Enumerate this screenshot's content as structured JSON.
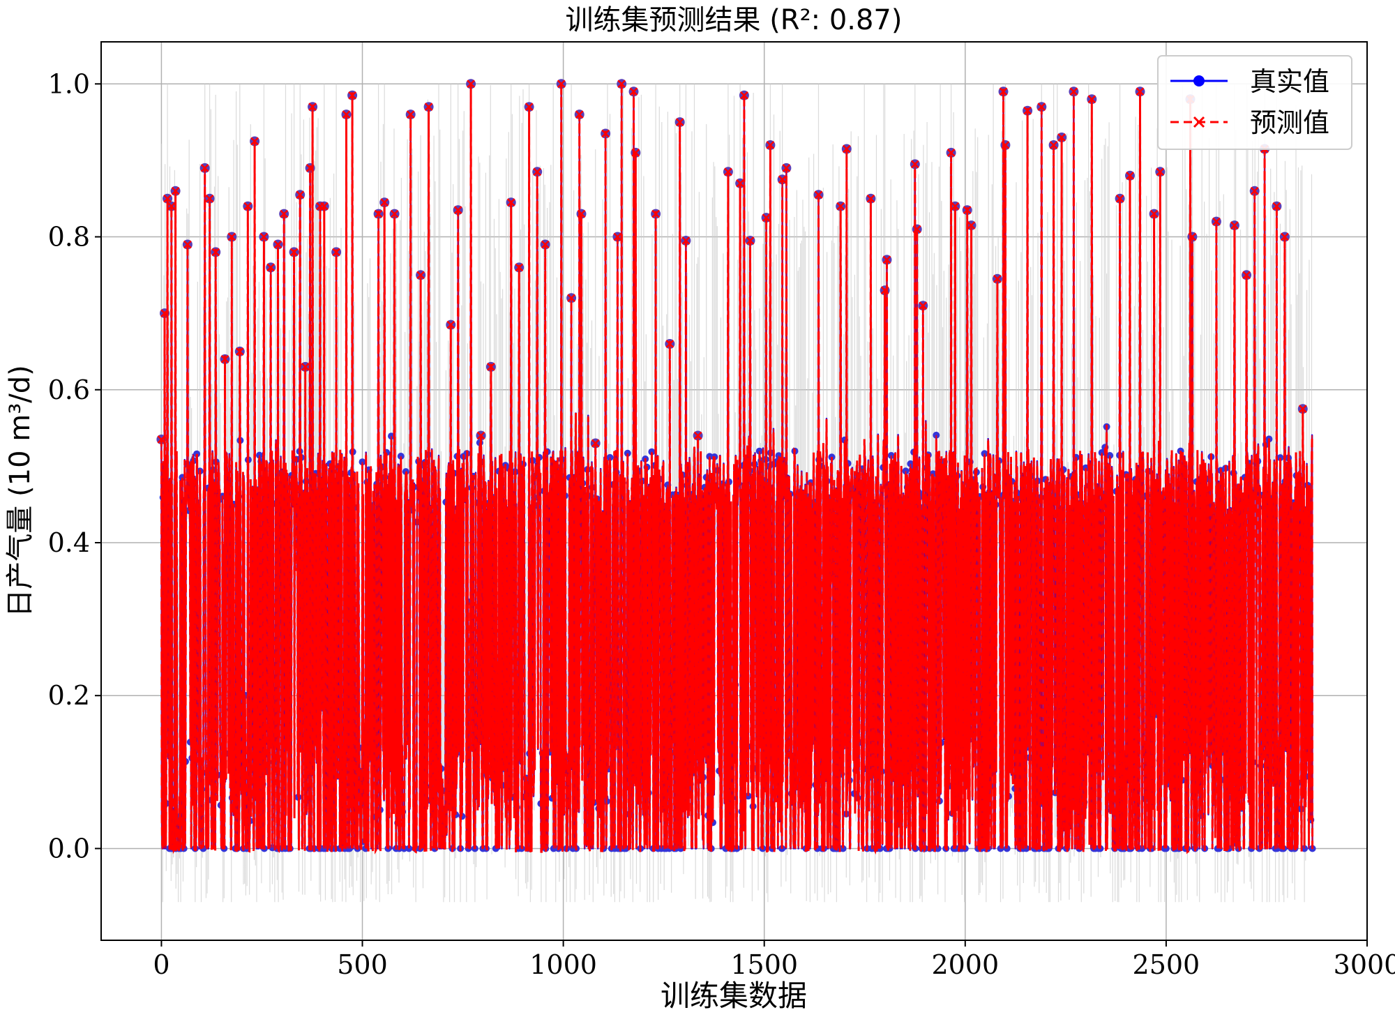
{
  "chart_data": {
    "type": "line",
    "title": "训练集预测结果 (R²: 0.87)",
    "xlabel": "训练集数据",
    "ylabel": "日产气量 (10 m³/d)",
    "xlim": [
      -150,
      3000
    ],
    "ylim": [
      -0.12,
      1.055
    ],
    "xticks": [
      0,
      500,
      1000,
      1500,
      2000,
      2500,
      3000
    ],
    "xtick_labels": [
      "0",
      "500",
      "1000",
      "1500",
      "2000",
      "2500",
      "3000"
    ],
    "yticks": [
      0.0,
      0.2,
      0.4,
      0.6,
      0.8,
      1.0
    ],
    "ytick_labels": [
      "0.0",
      "0.2",
      "0.4",
      "0.6",
      "0.8",
      "1.0"
    ],
    "grid": true,
    "legend_position": "top-right",
    "n_points": 2865,
    "series": [
      {
        "name": "真实值",
        "color": "#0000ff",
        "style": "solid",
        "marker": "circle"
      },
      {
        "name": "预测值",
        "color": "#ff0000",
        "style": "dashed",
        "marker": "x"
      }
    ],
    "peaks": [
      {
        "x": 0,
        "y": 0.535
      },
      {
        "x": 8,
        "y": 0.7
      },
      {
        "x": 15,
        "y": 0.85
      },
      {
        "x": 25,
        "y": 0.84
      },
      {
        "x": 35,
        "y": 0.86
      },
      {
        "x": 65,
        "y": 0.79
      },
      {
        "x": 108,
        "y": 0.89
      },
      {
        "x": 120,
        "y": 0.85
      },
      {
        "x": 135,
        "y": 0.78
      },
      {
        "x": 158,
        "y": 0.64
      },
      {
        "x": 175,
        "y": 0.8
      },
      {
        "x": 195,
        "y": 0.65
      },
      {
        "x": 215,
        "y": 0.84
      },
      {
        "x": 232,
        "y": 0.925
      },
      {
        "x": 255,
        "y": 0.8
      },
      {
        "x": 272,
        "y": 0.76
      },
      {
        "x": 290,
        "y": 0.79
      },
      {
        "x": 305,
        "y": 0.83
      },
      {
        "x": 330,
        "y": 0.78
      },
      {
        "x": 345,
        "y": 0.855
      },
      {
        "x": 358,
        "y": 0.63
      },
      {
        "x": 370,
        "y": 0.89
      },
      {
        "x": 376,
        "y": 0.97
      },
      {
        "x": 395,
        "y": 0.84
      },
      {
        "x": 405,
        "y": 0.84
      },
      {
        "x": 435,
        "y": 0.78
      },
      {
        "x": 460,
        "y": 0.96
      },
      {
        "x": 475,
        "y": 0.985
      },
      {
        "x": 540,
        "y": 0.83
      },
      {
        "x": 555,
        "y": 0.845
      },
      {
        "x": 580,
        "y": 0.83
      },
      {
        "x": 620,
        "y": 0.96
      },
      {
        "x": 645,
        "y": 0.75
      },
      {
        "x": 665,
        "y": 0.97
      },
      {
        "x": 720,
        "y": 0.685
      },
      {
        "x": 738,
        "y": 0.835
      },
      {
        "x": 770,
        "y": 1.0
      },
      {
        "x": 795,
        "y": 0.54
      },
      {
        "x": 820,
        "y": 0.63
      },
      {
        "x": 870,
        "y": 0.845
      },
      {
        "x": 890,
        "y": 0.76
      },
      {
        "x": 915,
        "y": 0.97
      },
      {
        "x": 935,
        "y": 0.885
      },
      {
        "x": 955,
        "y": 0.79
      },
      {
        "x": 995,
        "y": 1.0
      },
      {
        "x": 1020,
        "y": 0.72
      },
      {
        "x": 1040,
        "y": 0.96
      },
      {
        "x": 1045,
        "y": 0.83
      },
      {
        "x": 1080,
        "y": 0.53
      },
      {
        "x": 1105,
        "y": 0.935
      },
      {
        "x": 1135,
        "y": 0.8
      },
      {
        "x": 1145,
        "y": 1.0
      },
      {
        "x": 1175,
        "y": 0.99
      },
      {
        "x": 1180,
        "y": 0.91
      },
      {
        "x": 1230,
        "y": 0.83
      },
      {
        "x": 1265,
        "y": 0.66
      },
      {
        "x": 1290,
        "y": 0.95
      },
      {
        "x": 1305,
        "y": 0.795
      },
      {
        "x": 1335,
        "y": 0.54
      },
      {
        "x": 1410,
        "y": 0.885
      },
      {
        "x": 1440,
        "y": 0.87
      },
      {
        "x": 1450,
        "y": 0.985
      },
      {
        "x": 1465,
        "y": 0.795
      },
      {
        "x": 1505,
        "y": 0.825
      },
      {
        "x": 1515,
        "y": 0.92
      },
      {
        "x": 1545,
        "y": 0.875
      },
      {
        "x": 1555,
        "y": 0.89
      },
      {
        "x": 1635,
        "y": 0.855
      },
      {
        "x": 1690,
        "y": 0.84
      },
      {
        "x": 1705,
        "y": 0.915
      },
      {
        "x": 1765,
        "y": 0.85
      },
      {
        "x": 1800,
        "y": 0.73
      },
      {
        "x": 1805,
        "y": 0.77
      },
      {
        "x": 1875,
        "y": 0.895
      },
      {
        "x": 1880,
        "y": 0.81
      },
      {
        "x": 1895,
        "y": 0.71
      },
      {
        "x": 1965,
        "y": 0.91
      },
      {
        "x": 1975,
        "y": 0.84
      },
      {
        "x": 2005,
        "y": 0.835
      },
      {
        "x": 2015,
        "y": 0.815
      },
      {
        "x": 2080,
        "y": 0.745
      },
      {
        "x": 2095,
        "y": 0.99
      },
      {
        "x": 2100,
        "y": 0.92
      },
      {
        "x": 2155,
        "y": 0.965
      },
      {
        "x": 2190,
        "y": 0.97
      },
      {
        "x": 2220,
        "y": 0.92
      },
      {
        "x": 2240,
        "y": 0.93
      },
      {
        "x": 2270,
        "y": 0.99
      },
      {
        "x": 2315,
        "y": 0.98
      },
      {
        "x": 2385,
        "y": 0.85
      },
      {
        "x": 2410,
        "y": 0.88
      },
      {
        "x": 2435,
        "y": 0.99
      },
      {
        "x": 2470,
        "y": 0.83
      },
      {
        "x": 2485,
        "y": 0.885
      },
      {
        "x": 2560,
        "y": 0.98
      },
      {
        "x": 2565,
        "y": 0.8
      },
      {
        "x": 2625,
        "y": 0.82
      },
      {
        "x": 2670,
        "y": 0.815
      },
      {
        "x": 2700,
        "y": 0.75
      },
      {
        "x": 2720,
        "y": 0.86
      },
      {
        "x": 2745,
        "y": 0.915
      },
      {
        "x": 2775,
        "y": 0.84
      },
      {
        "x": 2795,
        "y": 0.8
      },
      {
        "x": 2840,
        "y": 0.575
      }
    ]
  }
}
